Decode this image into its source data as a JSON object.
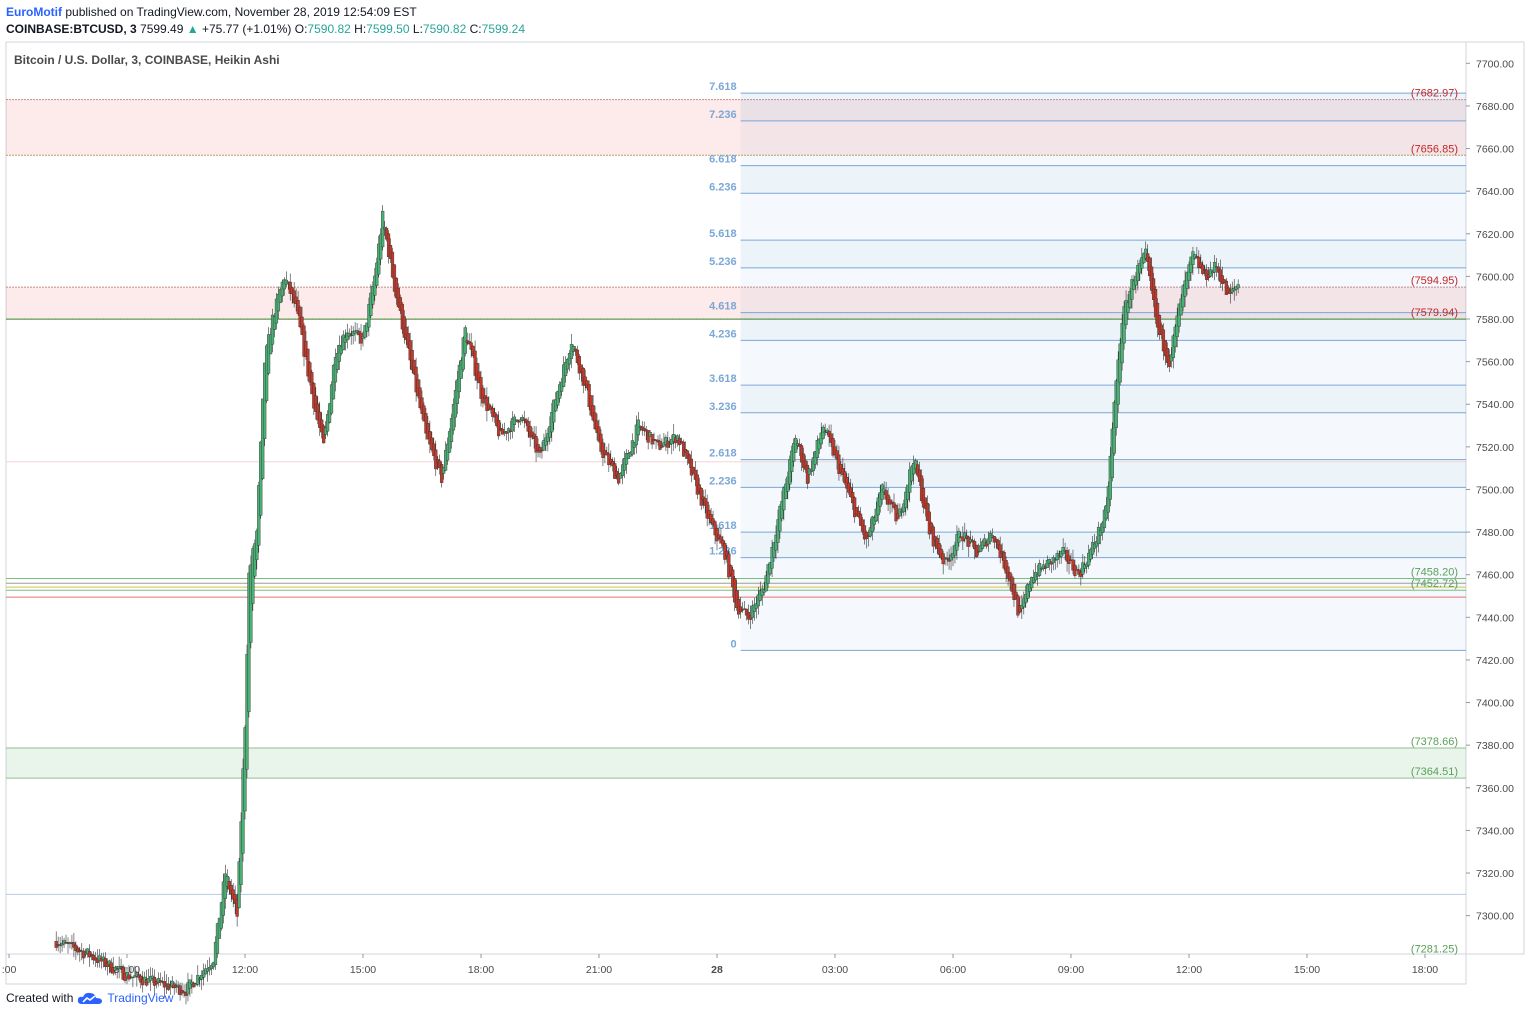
{
  "header": {
    "author": "EuroMotif",
    "published": "published on TradingView.com, November 28, 2019 12:54:09 EST",
    "symbol": "COINBASE:BTCUSD, 3",
    "last": "7599.49",
    "change": "+75.77 (+1.01%)",
    "o_label": "O:",
    "o_value": "7590.82",
    "h_label": "H:",
    "h_value": "7599.50",
    "l_label": "L:",
    "l_value": "7590.82",
    "c_label": "C:",
    "c_value": "7599.24"
  },
  "footer": {
    "created": "Created with",
    "brand": "TradingView"
  },
  "colors": {
    "up": "#26a69a",
    "candle_up": "#4caf75",
    "candle_down": "#c0392b",
    "fib": "#7ba7d7",
    "resistance": "#c62828",
    "support": "#5aa05a"
  },
  "chart_data": {
    "type": "candlestick",
    "title": "Bitcoin / U.S. Dollar, 3, COINBASE, Heikin Ashi",
    "ylim": [
      7282,
      7710
    ],
    "y_ticks": [
      7700,
      7680,
      7660,
      7640,
      7620,
      7600,
      7580,
      7560,
      7540,
      7520,
      7500,
      7480,
      7460,
      7440,
      7420,
      7400,
      7380,
      7360,
      7340,
      7320,
      7300
    ],
    "x_tick_labels": [
      ":00",
      "09:00",
      "12:00",
      "15:00",
      "18:00",
      "21:00",
      "28",
      "03:00",
      "06:00",
      "09:00",
      "12:00",
      "15:00",
      "18:00"
    ],
    "x_tick_hours": [
      6,
      9,
      12,
      15,
      18,
      21,
      24,
      27,
      30,
      33,
      36,
      39,
      42
    ],
    "grid": false,
    "fib_extension": {
      "base": 7424.5,
      "unit": 11.0,
      "levels": [
        {
          "label": "0",
          "value": 7424.5
        },
        {
          "label": "1.236",
          "value": 7468.0
        },
        {
          "label": "1.618",
          "value": 7480.0
        },
        {
          "label": "2.236",
          "value": 7501.0
        },
        {
          "label": "2.618",
          "value": 7514.0
        },
        {
          "label": "3.236",
          "value": 7536.0
        },
        {
          "label": "3.618",
          "value": 7549.0
        },
        {
          "label": "4.236",
          "value": 7570.0
        },
        {
          "label": "4.618",
          "value": 7583.0
        },
        {
          "label": "5.236",
          "value": 7604.0
        },
        {
          "label": "5.618",
          "value": 7617.0
        },
        {
          "label": "6.236",
          "value": 7639.0
        },
        {
          "label": "6.618",
          "value": 7652.0
        },
        {
          "label": "7.236",
          "value": 7673.0
        },
        {
          "label": "7.618",
          "value": 7686.0
        }
      ]
    },
    "zones": [
      {
        "name": "resistance-upper",
        "from": 7656.85,
        "to": 7682.97,
        "kind": "resistance"
      },
      {
        "name": "resistance-lower",
        "from": 7579.94,
        "to": 7594.95,
        "kind": "resistance"
      },
      {
        "name": "support-lower",
        "from": 7364.51,
        "to": 7378.66,
        "kind": "support"
      }
    ],
    "levels": [
      {
        "value": 7458.2,
        "kind": "support"
      },
      {
        "value": 7456.0,
        "kind": "neutral"
      },
      {
        "value": 7454.2,
        "kind": "yellow"
      },
      {
        "value": 7452.72,
        "kind": "support"
      },
      {
        "value": 7449.5,
        "kind": "resistance"
      },
      {
        "value": 7513.0,
        "kind": "faint"
      },
      {
        "value": 7310.0,
        "kind": "fib"
      }
    ],
    "price_labels": [
      {
        "text": "(7682.97)",
        "value": 7682.97,
        "kind": "resistance"
      },
      {
        "text": "(7656.85)",
        "value": 7656.85,
        "kind": "resistance"
      },
      {
        "text": "(7594.95)",
        "value": 7594.95,
        "kind": "resistance"
      },
      {
        "text": "(7579.94)",
        "value": 7579.94,
        "kind": "resistance"
      },
      {
        "text": "(7458.20)",
        "value": 7458.2,
        "kind": "support"
      },
      {
        "text": "(7452.72)",
        "value": 7452.72,
        "kind": "support"
      },
      {
        "text": "(7378.66)",
        "value": 7378.66,
        "kind": "support"
      },
      {
        "text": "(7364.51)",
        "value": 7364.51,
        "kind": "support"
      },
      {
        "text": "(7281.25)",
        "value": 7281.25,
        "kind": "support"
      }
    ],
    "series": [
      {
        "hour": 7.2,
        "close": 7288
      },
      {
        "hour": 8.0,
        "close": 7282
      },
      {
        "hour": 9.0,
        "close": 7272
      },
      {
        "hour": 10.5,
        "close": 7265
      },
      {
        "hour": 11.2,
        "close": 7280
      },
      {
        "hour": 11.5,
        "close": 7320
      },
      {
        "hour": 11.8,
        "close": 7300
      },
      {
        "hour": 12.0,
        "close": 7390
      },
      {
        "hour": 12.1,
        "close": 7460
      },
      {
        "hour": 12.3,
        "close": 7480
      },
      {
        "hour": 12.5,
        "close": 7560
      },
      {
        "hour": 12.7,
        "close": 7580
      },
      {
        "hour": 13.0,
        "close": 7600
      },
      {
        "hour": 13.3,
        "close": 7585
      },
      {
        "hour": 13.7,
        "close": 7545
      },
      {
        "hour": 14.0,
        "close": 7520
      },
      {
        "hour": 14.3,
        "close": 7565
      },
      {
        "hour": 14.6,
        "close": 7575
      },
      {
        "hour": 15.0,
        "close": 7570
      },
      {
        "hour": 15.3,
        "close": 7600
      },
      {
        "hour": 15.5,
        "close": 7628
      },
      {
        "hour": 15.8,
        "close": 7595
      },
      {
        "hour": 16.2,
        "close": 7560
      },
      {
        "hour": 16.6,
        "close": 7525
      },
      {
        "hour": 17.0,
        "close": 7505
      },
      {
        "hour": 17.3,
        "close": 7540
      },
      {
        "hour": 17.6,
        "close": 7575
      },
      {
        "hour": 18.0,
        "close": 7545
      },
      {
        "hour": 18.5,
        "close": 7525
      },
      {
        "hour": 19.0,
        "close": 7535
      },
      {
        "hour": 19.5,
        "close": 7515
      },
      {
        "hour": 20.0,
        "close": 7550
      },
      {
        "hour": 20.3,
        "close": 7570
      },
      {
        "hour": 20.7,
        "close": 7545
      },
      {
        "hour": 21.0,
        "close": 7520
      },
      {
        "hour": 21.5,
        "close": 7505
      },
      {
        "hour": 22.0,
        "close": 7530
      },
      {
        "hour": 22.5,
        "close": 7520
      },
      {
        "hour": 23.0,
        "close": 7525
      },
      {
        "hour": 23.5,
        "close": 7500
      },
      {
        "hour": 23.8,
        "close": 7485
      },
      {
        "hour": 24.2,
        "close": 7470
      },
      {
        "hour": 24.5,
        "close": 7445
      },
      {
        "hour": 24.8,
        "close": 7440
      },
      {
        "hour": 25.2,
        "close": 7455
      },
      {
        "hour": 25.6,
        "close": 7490
      },
      {
        "hour": 26.0,
        "close": 7525
      },
      {
        "hour": 26.3,
        "close": 7505
      },
      {
        "hour": 26.7,
        "close": 7530
      },
      {
        "hour": 27.0,
        "close": 7515
      },
      {
        "hour": 27.5,
        "close": 7490
      },
      {
        "hour": 27.8,
        "close": 7475
      },
      {
        "hour": 28.2,
        "close": 7500
      },
      {
        "hour": 28.6,
        "close": 7485
      },
      {
        "hour": 29.0,
        "close": 7515
      },
      {
        "hour": 29.4,
        "close": 7480
      },
      {
        "hour": 29.8,
        "close": 7465
      },
      {
        "hour": 30.2,
        "close": 7480
      },
      {
        "hour": 30.6,
        "close": 7470
      },
      {
        "hour": 31.0,
        "close": 7480
      },
      {
        "hour": 31.4,
        "close": 7460
      },
      {
        "hour": 31.7,
        "close": 7440
      },
      {
        "hour": 32.0,
        "close": 7460
      },
      {
        "hour": 32.4,
        "close": 7465
      },
      {
        "hour": 32.8,
        "close": 7470
      },
      {
        "hour": 33.2,
        "close": 7460
      },
      {
        "hour": 33.6,
        "close": 7475
      },
      {
        "hour": 33.9,
        "close": 7490
      },
      {
        "hour": 34.1,
        "close": 7540
      },
      {
        "hour": 34.3,
        "close": 7580
      },
      {
        "hour": 34.6,
        "close": 7600
      },
      {
        "hour": 34.9,
        "close": 7610
      },
      {
        "hour": 35.2,
        "close": 7575
      },
      {
        "hour": 35.5,
        "close": 7560
      },
      {
        "hour": 35.8,
        "close": 7590
      },
      {
        "hour": 36.1,
        "close": 7610
      },
      {
        "hour": 36.4,
        "close": 7600
      },
      {
        "hour": 36.7,
        "close": 7605
      },
      {
        "hour": 37.0,
        "close": 7590
      },
      {
        "hour": 37.3,
        "close": 7598
      }
    ]
  }
}
